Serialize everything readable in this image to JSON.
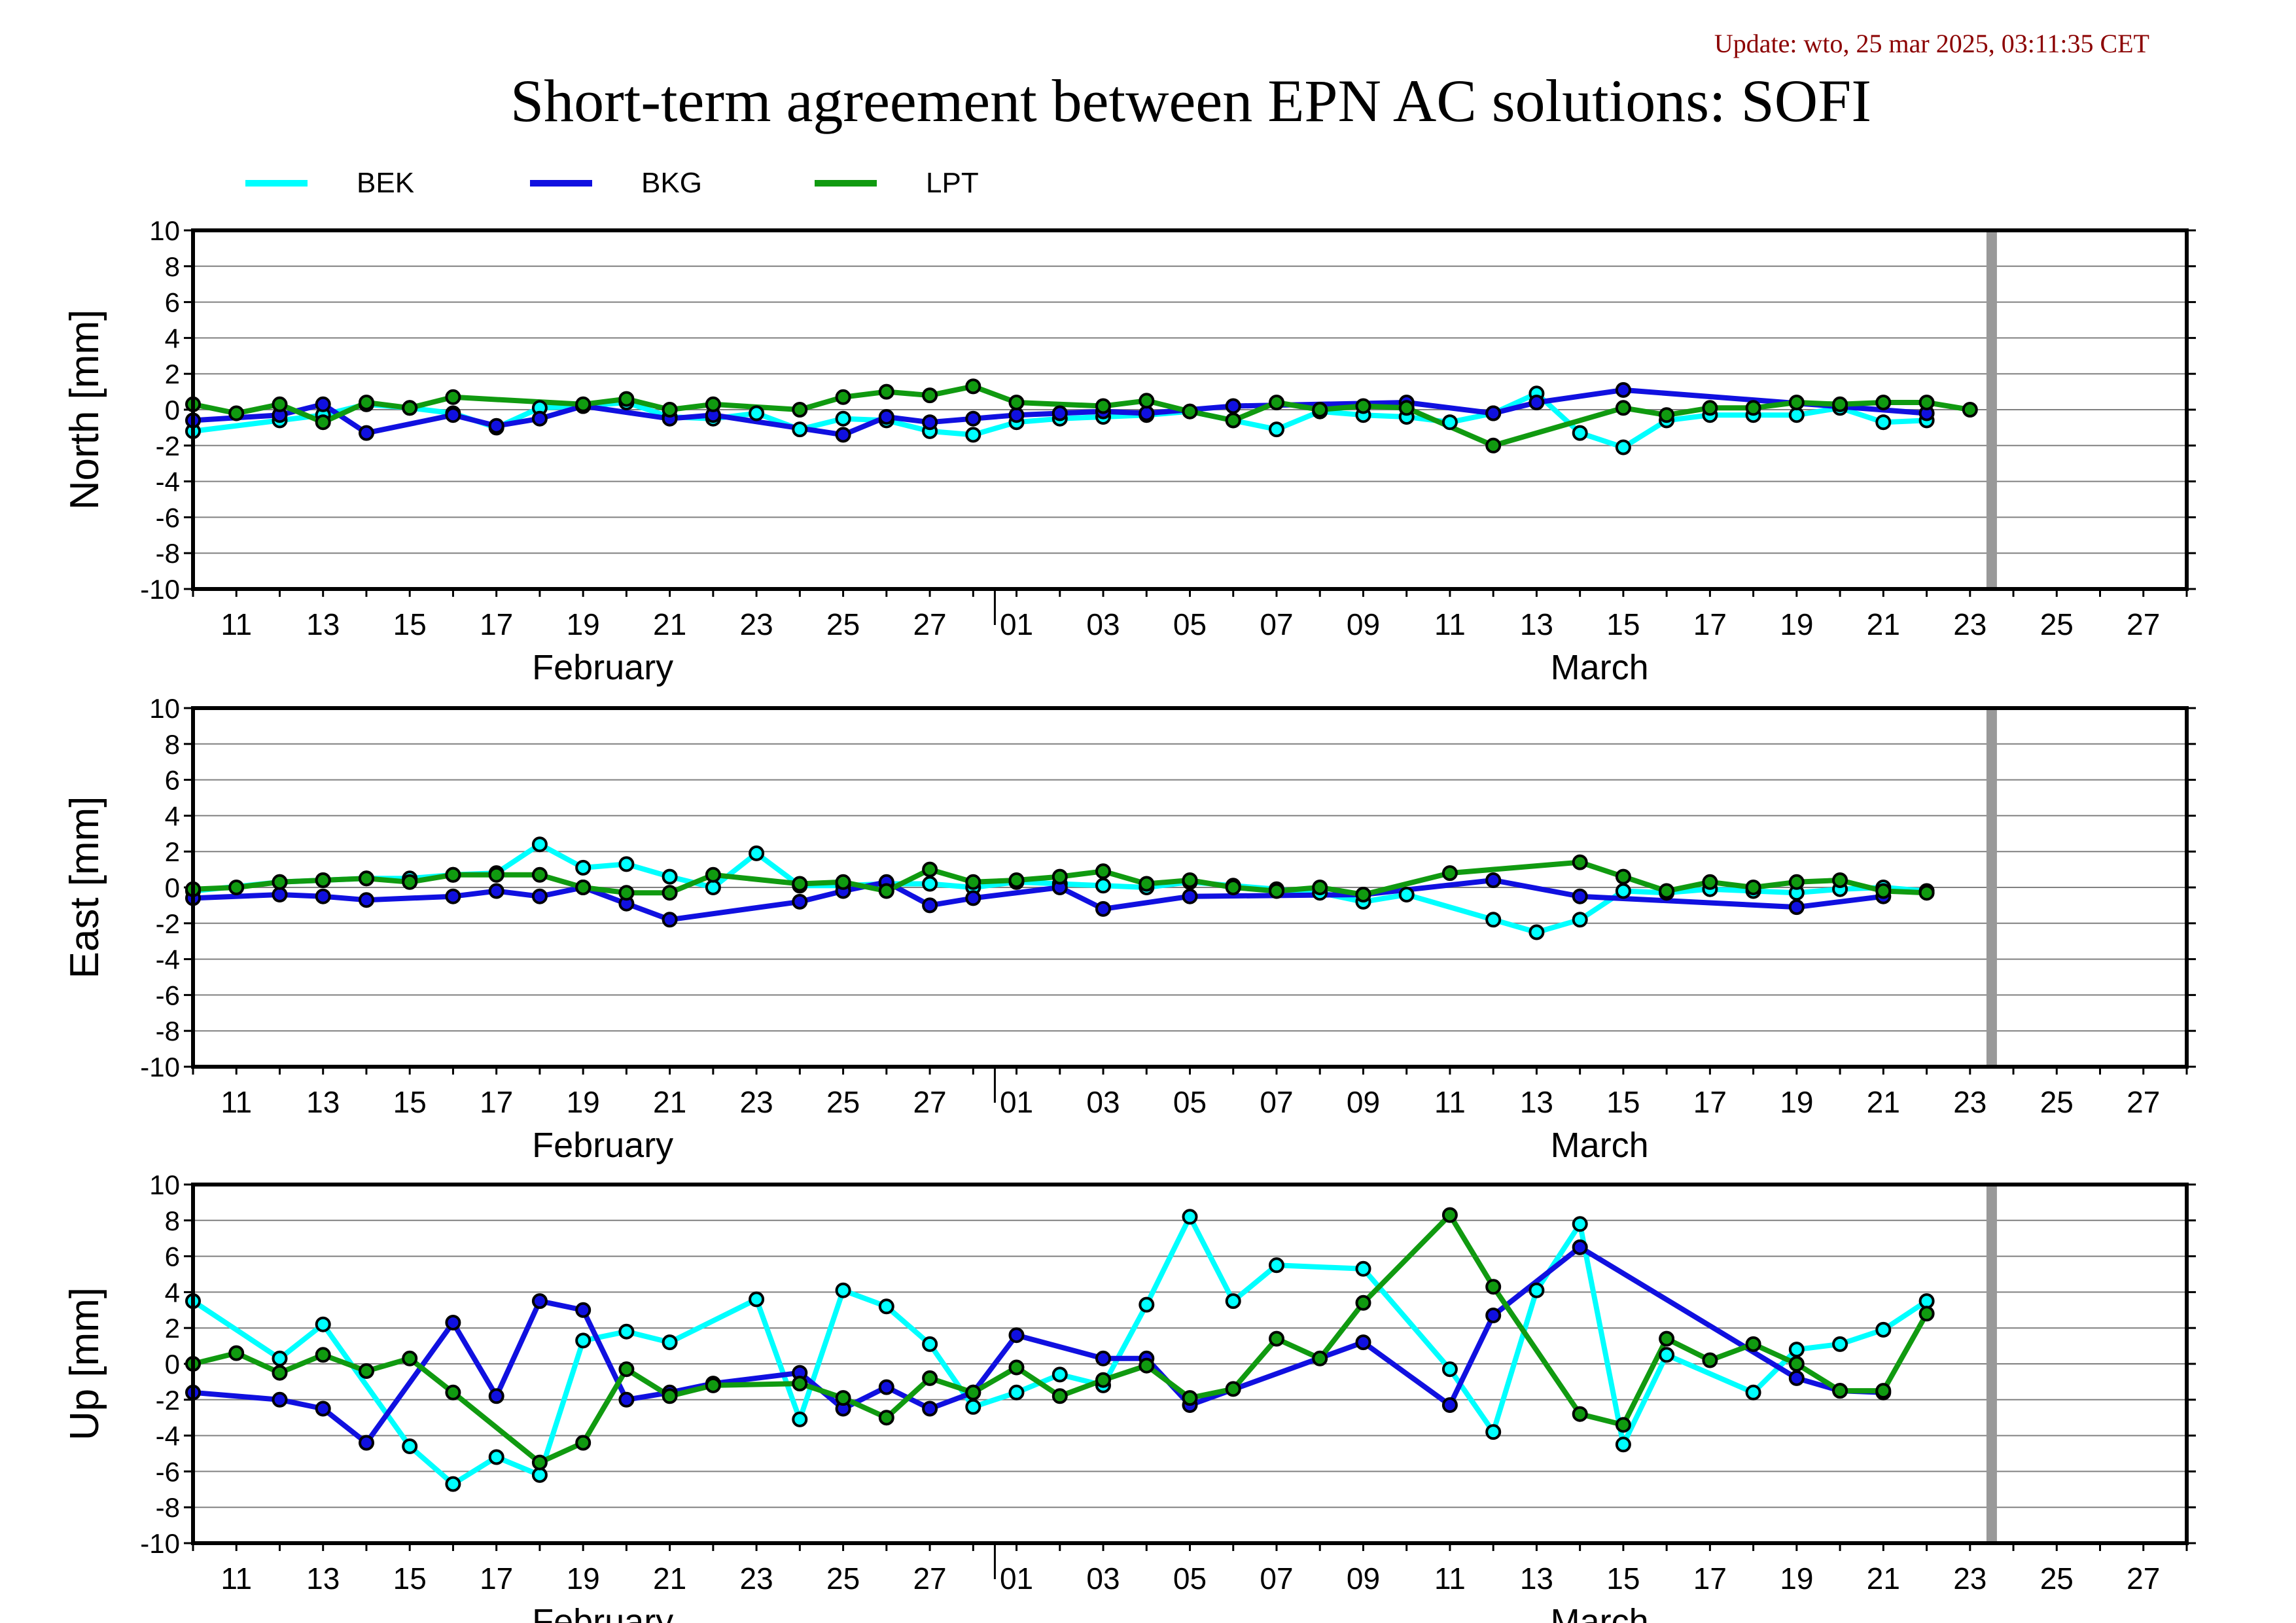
{
  "update_text": "Update: wto, 25 mar 2025, 03:11:35 CET",
  "title": "Short-term agreement between EPN AC solutions: SOFI",
  "colors": {
    "BEK": "#00ffff",
    "BKG": "#1010e0",
    "LPT": "#109a10",
    "update": "#8b0000",
    "future_marker": "#999999"
  },
  "chart_data": [
    {
      "type": "line",
      "ylabel": "North [mm]",
      "ylim": [
        -10,
        10
      ],
      "yticks": [
        10,
        8,
        6,
        4,
        2,
        0,
        -2,
        -4,
        -6,
        -8,
        -10
      ],
      "grid": true,
      "legend_position": "top-left",
      "x_range": [
        "2025-02-10",
        "2025-03-28"
      ],
      "x_tick_labels": [
        "11",
        "13",
        "15",
        "17",
        "19",
        "21",
        "23",
        "25",
        "27",
        "01",
        "03",
        "05",
        "07",
        "09",
        "11",
        "13",
        "15",
        "17",
        "19",
        "21",
        "23",
        "25",
        "27"
      ],
      "month_labels": [
        "February",
        "March"
      ],
      "future_marker_date": "2025-03-23",
      "series": [
        {
          "name": "BEK",
          "dates": [
            "2025-02-10",
            "2025-02-12",
            "2025-02-13",
            "2025-02-14",
            "2025-02-15",
            "2025-02-16",
            "2025-02-17",
            "2025-02-18",
            "2025-02-19",
            "2025-02-20",
            "2025-02-21",
            "2025-02-22",
            "2025-02-23",
            "2025-02-24",
            "2025-02-25",
            "2025-02-26",
            "2025-02-27",
            "2025-02-28",
            "2025-03-01",
            "2025-03-02",
            "2025-03-03",
            "2025-03-04",
            "2025-03-05",
            "2025-03-06",
            "2025-03-07",
            "2025-03-08",
            "2025-03-09",
            "2025-03-10",
            "2025-03-11",
            "2025-03-12",
            "2025-03-13",
            "2025-03-14",
            "2025-03-15",
            "2025-03-16",
            "2025-03-17",
            "2025-03-18",
            "2025-03-19",
            "2025-03-20",
            "2025-03-21",
            "2025-03-22"
          ],
          "values": [
            -1.2,
            -0.6,
            -0.3,
            0.3,
            0.1,
            -0.2,
            -1.0,
            0.1,
            0.2,
            0.4,
            -0.4,
            -0.5,
            -0.2,
            -1.1,
            -0.5,
            -0.6,
            -1.2,
            -1.4,
            -0.7,
            -0.5,
            -0.4,
            -0.3,
            -0.1,
            -0.6,
            -1.1,
            -0.1,
            -0.3,
            -0.4,
            -0.7,
            -0.2,
            0.9,
            -1.3,
            -2.1,
            -0.6,
            -0.3,
            -0.3,
            -0.3,
            0.1,
            -0.7,
            -0.6
          ]
        },
        {
          "name": "BKG",
          "dates": [
            "2025-02-10",
            "2025-02-12",
            "2025-02-13",
            "2025-02-14",
            "2025-02-16",
            "2025-02-17",
            "2025-02-18",
            "2025-02-19",
            "2025-02-21",
            "2025-02-22",
            "2025-02-25",
            "2025-02-26",
            "2025-02-27",
            "2025-02-28",
            "2025-03-01",
            "2025-03-02",
            "2025-03-03",
            "2025-03-04",
            "2025-03-06",
            "2025-03-10",
            "2025-03-12",
            "2025-03-13",
            "2025-03-15",
            "2025-03-22"
          ],
          "values": [
            -0.6,
            -0.3,
            0.3,
            -1.3,
            -0.3,
            -0.9,
            -0.5,
            0.2,
            -0.5,
            -0.3,
            -1.4,
            -0.4,
            -0.7,
            -0.5,
            -0.3,
            -0.2,
            -0.1,
            -0.2,
            0.2,
            0.4,
            -0.2,
            0.4,
            1.1,
            -0.2
          ]
        },
        {
          "name": "LPT",
          "dates": [
            "2025-02-10",
            "2025-02-11",
            "2025-02-12",
            "2025-02-13",
            "2025-02-14",
            "2025-02-15",
            "2025-02-16",
            "2025-02-19",
            "2025-02-20",
            "2025-02-21",
            "2025-02-22",
            "2025-02-24",
            "2025-02-25",
            "2025-02-26",
            "2025-02-27",
            "2025-02-28",
            "2025-03-01",
            "2025-03-03",
            "2025-03-04",
            "2025-03-05",
            "2025-03-06",
            "2025-03-07",
            "2025-03-08",
            "2025-03-09",
            "2025-03-10",
            "2025-03-12",
            "2025-03-15",
            "2025-03-16",
            "2025-03-17",
            "2025-03-18",
            "2025-03-19",
            "2025-03-20",
            "2025-03-21",
            "2025-03-22",
            "2025-03-23"
          ],
          "values": [
            0.3,
            -0.2,
            0.3,
            -0.7,
            0.4,
            0.1,
            0.7,
            0.3,
            0.6,
            0.0,
            0.3,
            0.0,
            0.7,
            1.0,
            0.8,
            1.3,
            0.4,
            0.2,
            0.5,
            -0.1,
            -0.6,
            0.4,
            0.0,
            0.2,
            0.1,
            -2.0,
            0.1,
            -0.3,
            0.1,
            0.1,
            0.4,
            0.3,
            0.4,
            0.4,
            0.0
          ]
        }
      ]
    },
    {
      "type": "line",
      "ylabel": "East [mm]",
      "ylim": [
        -10,
        10
      ],
      "yticks": [
        10,
        8,
        6,
        4,
        2,
        0,
        -2,
        -4,
        -6,
        -8,
        -10
      ],
      "grid": true,
      "x_range": [
        "2025-02-10",
        "2025-03-28"
      ],
      "x_tick_labels": [
        "11",
        "13",
        "15",
        "17",
        "19",
        "21",
        "23",
        "25",
        "27",
        "01",
        "03",
        "05",
        "07",
        "09",
        "11",
        "13",
        "15",
        "17",
        "19",
        "21",
        "23",
        "25",
        "27"
      ],
      "month_labels": [
        "February",
        "March"
      ],
      "future_marker_date": "2025-03-23",
      "series": [
        {
          "name": "BEK",
          "dates": [
            "2025-02-10",
            "2025-02-12",
            "2025-02-13",
            "2025-02-14",
            "2025-02-15",
            "2025-02-16",
            "2025-02-17",
            "2025-02-18",
            "2025-02-19",
            "2025-02-20",
            "2025-02-21",
            "2025-02-22",
            "2025-02-23",
            "2025-02-24",
            "2025-02-25",
            "2025-02-26",
            "2025-02-27",
            "2025-02-28",
            "2025-03-01",
            "2025-03-02",
            "2025-03-03",
            "2025-03-04",
            "2025-03-05",
            "2025-03-06",
            "2025-03-07",
            "2025-03-08",
            "2025-03-09",
            "2025-03-10",
            "2025-03-12",
            "2025-03-13",
            "2025-03-14",
            "2025-03-15",
            "2025-03-16",
            "2025-03-17",
            "2025-03-18",
            "2025-03-19",
            "2025-03-20",
            "2025-03-21",
            "2025-03-22"
          ],
          "values": [
            -0.2,
            0.3,
            0.4,
            0.5,
            0.5,
            0.7,
            0.8,
            2.4,
            1.1,
            1.3,
            0.6,
            0.0,
            1.9,
            0.1,
            0.1,
            0.2,
            0.2,
            0.0,
            0.3,
            0.2,
            0.1,
            0.0,
            0.3,
            0.1,
            -0.1,
            -0.3,
            -0.8,
            -0.4,
            -1.8,
            -2.5,
            -1.8,
            -0.2,
            -0.3,
            -0.1,
            -0.2,
            -0.3,
            -0.1,
            0.0,
            -0.2
          ]
        },
        {
          "name": "BKG",
          "dates": [
            "2025-02-10",
            "2025-02-12",
            "2025-02-13",
            "2025-02-14",
            "2025-02-16",
            "2025-02-17",
            "2025-02-18",
            "2025-02-19",
            "2025-02-20",
            "2025-02-21",
            "2025-02-24",
            "2025-02-25",
            "2025-02-26",
            "2025-02-27",
            "2025-02-28",
            "2025-03-02",
            "2025-03-03",
            "2025-03-05",
            "2025-03-09",
            "2025-03-12",
            "2025-03-14",
            "2025-03-19",
            "2025-03-21"
          ],
          "values": [
            -0.6,
            -0.4,
            -0.5,
            -0.7,
            -0.5,
            -0.2,
            -0.5,
            0.0,
            -0.9,
            -1.8,
            -0.8,
            -0.2,
            0.3,
            -1.0,
            -0.6,
            0.0,
            -1.2,
            -0.5,
            -0.4,
            0.4,
            -0.5,
            -1.1,
            -0.5
          ]
        },
        {
          "name": "LPT",
          "dates": [
            "2025-02-10",
            "2025-02-11",
            "2025-02-12",
            "2025-02-13",
            "2025-02-14",
            "2025-02-15",
            "2025-02-16",
            "2025-02-17",
            "2025-02-18",
            "2025-02-19",
            "2025-02-20",
            "2025-02-21",
            "2025-02-22",
            "2025-02-24",
            "2025-02-25",
            "2025-02-26",
            "2025-02-27",
            "2025-02-28",
            "2025-03-01",
            "2025-03-02",
            "2025-03-03",
            "2025-03-04",
            "2025-03-05",
            "2025-03-06",
            "2025-03-07",
            "2025-03-08",
            "2025-03-09",
            "2025-03-11",
            "2025-03-14",
            "2025-03-15",
            "2025-03-16",
            "2025-03-17",
            "2025-03-18",
            "2025-03-19",
            "2025-03-20",
            "2025-03-21",
            "2025-03-22"
          ],
          "values": [
            -0.1,
            0.0,
            0.3,
            0.4,
            0.5,
            0.3,
            0.7,
            0.7,
            0.7,
            0.0,
            -0.3,
            -0.3,
            0.7,
            0.2,
            0.3,
            -0.2,
            1.0,
            0.3,
            0.4,
            0.6,
            0.9,
            0.2,
            0.4,
            0.0,
            -0.2,
            0.0,
            -0.4,
            0.8,
            1.4,
            0.6,
            -0.2,
            0.3,
            0.0,
            0.3,
            0.4,
            -0.2,
            -0.3
          ]
        }
      ]
    },
    {
      "type": "line",
      "ylabel": "Up [mm]",
      "ylim": [
        -10,
        10
      ],
      "yticks": [
        10,
        8,
        6,
        4,
        2,
        0,
        -2,
        -4,
        -6,
        -8,
        -10
      ],
      "grid": true,
      "x_range": [
        "2025-02-10",
        "2025-03-28"
      ],
      "x_tick_labels": [
        "11",
        "13",
        "15",
        "17",
        "19",
        "21",
        "23",
        "25",
        "27",
        "01",
        "03",
        "05",
        "07",
        "09",
        "11",
        "13",
        "15",
        "17",
        "19",
        "21",
        "23",
        "25",
        "27"
      ],
      "month_labels": [
        "February",
        "March"
      ],
      "future_marker_date": "2025-03-23",
      "series": [
        {
          "name": "BEK",
          "dates": [
            "2025-02-10",
            "2025-02-12",
            "2025-02-13",
            "2025-02-15",
            "2025-02-16",
            "2025-02-17",
            "2025-02-18",
            "2025-02-19",
            "2025-02-20",
            "2025-02-21",
            "2025-02-23",
            "2025-02-24",
            "2025-02-25",
            "2025-02-26",
            "2025-02-27",
            "2025-02-28",
            "2025-03-01",
            "2025-03-02",
            "2025-03-03",
            "2025-03-04",
            "2025-03-05",
            "2025-03-06",
            "2025-03-07",
            "2025-03-09",
            "2025-03-11",
            "2025-03-12",
            "2025-03-13",
            "2025-03-14",
            "2025-03-15",
            "2025-03-16",
            "2025-03-18",
            "2025-03-19",
            "2025-03-20",
            "2025-03-21",
            "2025-03-22"
          ],
          "values": [
            3.5,
            0.3,
            2.2,
            -4.6,
            -6.7,
            -5.2,
            -6.2,
            1.3,
            1.8,
            1.2,
            3.6,
            -3.1,
            4.1,
            3.2,
            1.1,
            -2.4,
            -1.6,
            -0.6,
            -1.2,
            3.3,
            8.2,
            3.5,
            5.5,
            5.3,
            -0.3,
            -3.8,
            4.1,
            7.8,
            -4.5,
            0.5,
            -1.6,
            0.8,
            1.1,
            1.9,
            3.5
          ]
        },
        {
          "name": "BKG",
          "dates": [
            "2025-02-10",
            "2025-02-12",
            "2025-02-13",
            "2025-02-14",
            "2025-02-16",
            "2025-02-17",
            "2025-02-18",
            "2025-02-19",
            "2025-02-20",
            "2025-02-21",
            "2025-02-22",
            "2025-02-24",
            "2025-02-25",
            "2025-02-26",
            "2025-02-27",
            "2025-02-28",
            "2025-03-01",
            "2025-03-03",
            "2025-03-04",
            "2025-03-05",
            "2025-03-09",
            "2025-03-11",
            "2025-03-12",
            "2025-03-14",
            "2025-03-19",
            "2025-03-20",
            "2025-03-21"
          ],
          "values": [
            -1.6,
            -2.0,
            -2.5,
            -4.4,
            2.3,
            -1.8,
            3.5,
            3.0,
            -2.0,
            -1.6,
            -1.1,
            -0.5,
            -2.5,
            -1.3,
            -2.5,
            -1.6,
            1.6,
            0.3,
            0.3,
            -2.3,
            1.2,
            -2.3,
            2.7,
            6.5,
            -0.8,
            -1.5,
            -1.6
          ]
        },
        {
          "name": "LPT",
          "dates": [
            "2025-02-10",
            "2025-02-11",
            "2025-02-12",
            "2025-02-13",
            "2025-02-14",
            "2025-02-15",
            "2025-02-16",
            "2025-02-18",
            "2025-02-19",
            "2025-02-20",
            "2025-02-21",
            "2025-02-22",
            "2025-02-24",
            "2025-02-25",
            "2025-02-26",
            "2025-02-27",
            "2025-02-28",
            "2025-03-01",
            "2025-03-02",
            "2025-03-03",
            "2025-03-04",
            "2025-03-05",
            "2025-03-06",
            "2025-03-07",
            "2025-03-08",
            "2025-03-09",
            "2025-03-11",
            "2025-03-12",
            "2025-03-14",
            "2025-03-15",
            "2025-03-16",
            "2025-03-17",
            "2025-03-18",
            "2025-03-19",
            "2025-03-20",
            "2025-03-21",
            "2025-03-22"
          ],
          "values": [
            0.0,
            0.6,
            -0.5,
            0.5,
            -0.4,
            0.3,
            -1.6,
            -5.5,
            -4.4,
            -0.3,
            -1.8,
            -1.2,
            -1.1,
            -1.9,
            -3.0,
            -0.8,
            -1.6,
            -0.2,
            -1.8,
            -0.9,
            -0.1,
            -1.9,
            -1.4,
            1.4,
            0.3,
            3.4,
            8.3,
            4.3,
            -2.8,
            -3.4,
            1.4,
            0.2,
            1.1,
            0.0,
            -1.5,
            -1.5,
            2.8
          ]
        }
      ]
    }
  ]
}
